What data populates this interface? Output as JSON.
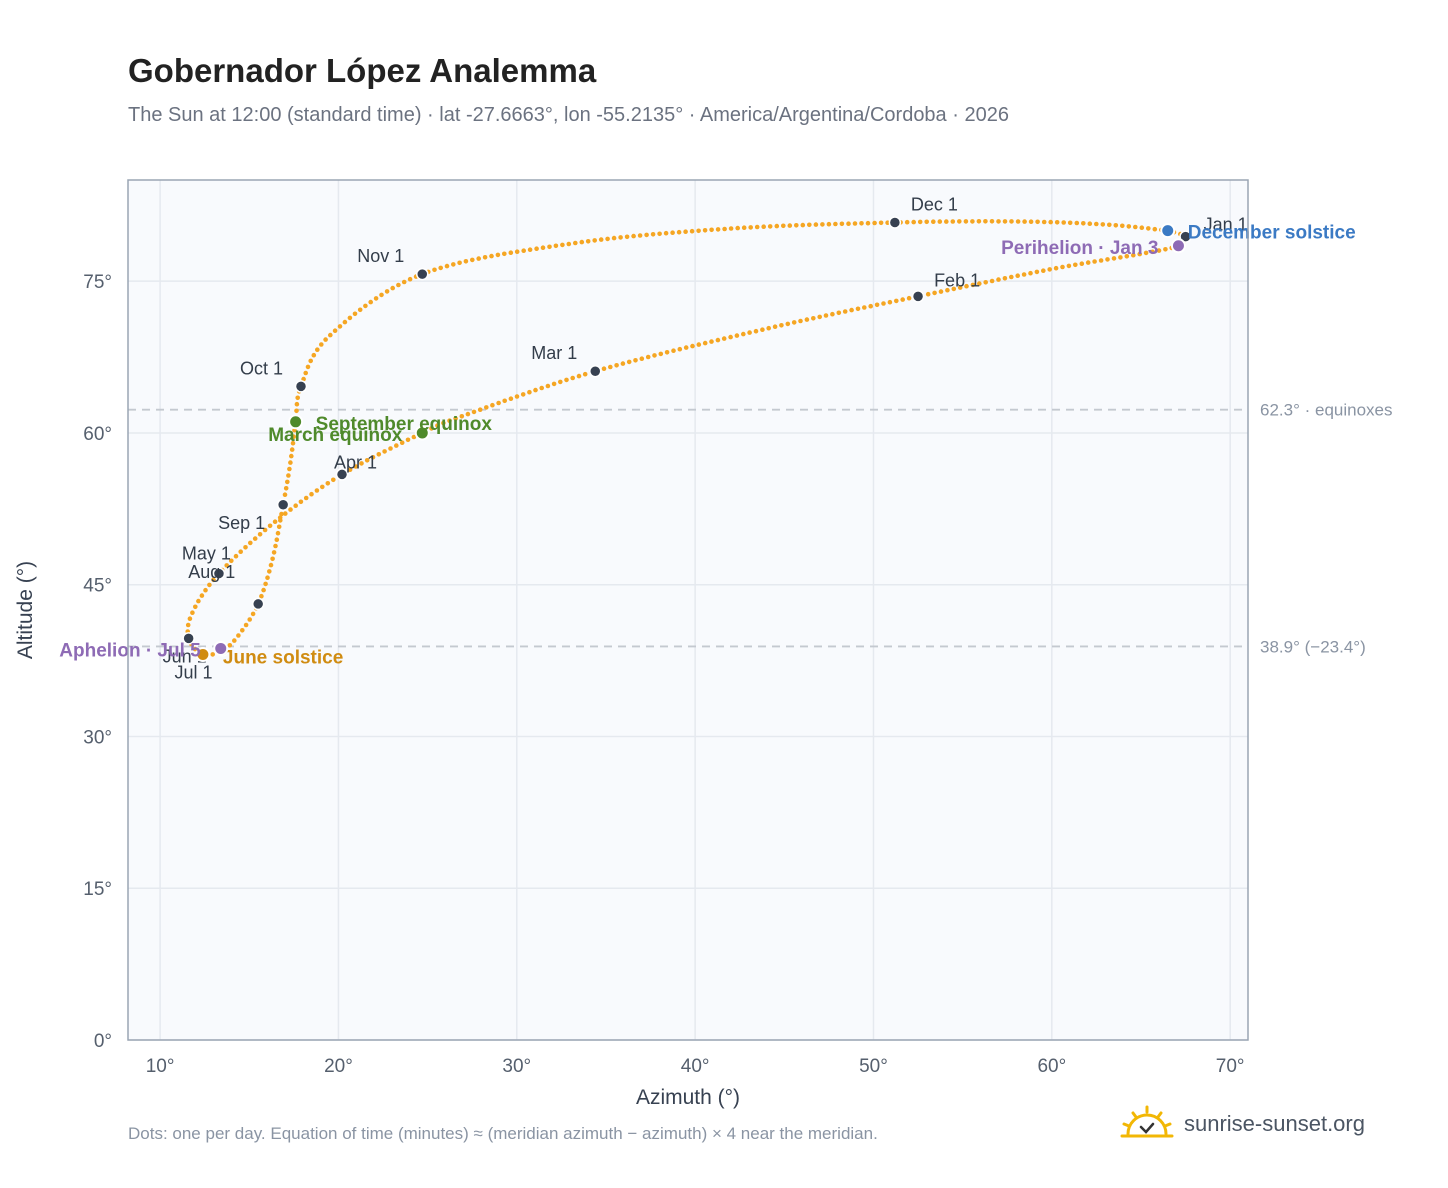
{
  "header": {
    "title": "Gobernador López Analemma",
    "subtitle": "The Sun at 12:00 (standard time) · lat -27.6663°, lon -55.2135° · America/Argentina/Cordoba · 2026"
  },
  "footer": {
    "note": "Dots: one per day. Equation of time (minutes) ≈ (meridian azimuth − azimuth) × 4 near the meridian.",
    "brand": "sunrise-sunset.org",
    "brand_icon": "sun-logo-icon"
  },
  "colors": {
    "path": "#f5a623",
    "month_dot": "#374151",
    "equinox": "#4f8a2b",
    "june_solstice": "#d08c12",
    "december_solstice": "#3b7ac4",
    "apsis": "#8e6bb5",
    "grid": "#e5e9ef",
    "plot_bg": "#f8fafd",
    "frame": "#9aa5b4",
    "ref_line": "#c4c9d0"
  },
  "chart_data": {
    "type": "scatter",
    "xlabel": "Azimuth (°)",
    "ylabel": "Altitude (°)",
    "xlim": [
      8.2,
      71.0
    ],
    "ylim": [
      0,
      85
    ],
    "x_ticks": [
      10,
      20,
      30,
      40,
      50,
      60,
      70
    ],
    "x_tick_labels": [
      "10°",
      "20°",
      "30°",
      "40°",
      "50°",
      "60°",
      "70°"
    ],
    "y_ticks": [
      0,
      15,
      30,
      45,
      60,
      75
    ],
    "y_tick_labels": [
      "0°",
      "15°",
      "30°",
      "45°",
      "60°",
      "75°"
    ],
    "grid": true,
    "reference_lines": [
      {
        "y": 62.3,
        "label": "62.3° · equinoxes"
      },
      {
        "y": 38.9,
        "label": "38.9° (−23.4°)"
      }
    ],
    "month_markers": [
      {
        "label": "Jan 1",
        "az": 67.5,
        "alt": 79.4
      },
      {
        "label": "Feb 1",
        "az": 52.5,
        "alt": 73.5
      },
      {
        "label": "Mar 1",
        "az": 34.4,
        "alt": 66.1
      },
      {
        "label": "Apr 1",
        "az": 20.2,
        "alt": 55.9
      },
      {
        "label": "May 1",
        "az": 13.3,
        "alt": 46.1
      },
      {
        "label": "Jun 1",
        "az": 11.6,
        "alt": 39.7
      },
      {
        "label": "Jul 1",
        "az": 13.5,
        "alt": 38.5
      },
      {
        "label": "Aug 1",
        "az": 15.5,
        "alt": 43.1
      },
      {
        "label": "Sep 1",
        "az": 16.9,
        "alt": 52.9
      },
      {
        "label": "Oct 1",
        "az": 17.9,
        "alt": 64.6
      },
      {
        "label": "Nov 1",
        "az": 24.7,
        "alt": 75.7
      },
      {
        "label": "Dec 1",
        "az": 51.2,
        "alt": 80.8
      }
    ],
    "events": [
      {
        "label": "March equinox",
        "az": 24.7,
        "alt": 60.0,
        "kind": "equinox"
      },
      {
        "label": "September equinox",
        "az": 17.6,
        "alt": 61.1,
        "kind": "equinox"
      },
      {
        "label": "June solstice",
        "az": 12.4,
        "alt": 38.1,
        "kind": "june_solstice"
      },
      {
        "label": "December solstice",
        "az": 66.5,
        "alt": 80.0,
        "kind": "december_solstice"
      },
      {
        "label": "Perihelion · Jan 3",
        "az": 67.1,
        "alt": 78.5,
        "kind": "apsis"
      },
      {
        "label": "Aphelion · Jul 5",
        "az": 13.4,
        "alt": 38.7,
        "kind": "apsis"
      }
    ],
    "path_waypoints": [
      [
        66.5,
        80.0
      ],
      [
        67.3,
        79.6
      ],
      [
        67.5,
        79.4
      ],
      [
        67.1,
        78.5
      ],
      [
        65.0,
        77.7
      ],
      [
        60.0,
        76.2
      ],
      [
        52.5,
        73.5
      ],
      [
        44.0,
        70.3
      ],
      [
        34.4,
        66.1
      ],
      [
        27.0,
        61.7
      ],
      [
        24.7,
        60.0
      ],
      [
        20.2,
        55.9
      ],
      [
        16.5,
        51.3
      ],
      [
        13.3,
        46.1
      ],
      [
        11.8,
        42.2
      ],
      [
        11.6,
        39.7
      ],
      [
        12.4,
        38.1
      ],
      [
        13.5,
        38.5
      ],
      [
        14.4,
        40.0
      ],
      [
        15.5,
        43.1
      ],
      [
        16.3,
        47.5
      ],
      [
        16.9,
        52.9
      ],
      [
        17.3,
        57.0
      ],
      [
        17.6,
        61.1
      ],
      [
        17.9,
        64.6
      ],
      [
        19.5,
        69.6
      ],
      [
        24.7,
        75.7
      ],
      [
        33.0,
        78.7
      ],
      [
        42.0,
        80.2
      ],
      [
        51.2,
        80.8
      ],
      [
        58.0,
        80.9
      ],
      [
        63.0,
        80.6
      ],
      [
        66.5,
        80.0
      ]
    ]
  }
}
